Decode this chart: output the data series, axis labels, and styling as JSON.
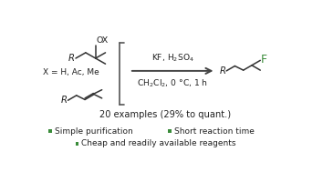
{
  "background_color": "#ffffff",
  "arrow_color": "#555555",
  "green_color": "#3a8c3a",
  "text_color": "#222222",
  "reaction_conditions_line1": "KF, H$_2$SO$_4$",
  "reaction_conditions_line2": "CH$_2$Cl$_2$, 0 °C, 1 h",
  "examples_text": "20 examples (29% to quant.)",
  "bullet1": "Simple purification",
  "bullet2": "Short reaction time",
  "bullet3": "Cheap and readily available reagents",
  "x_label": "X = H, Ac, Me",
  "fig_width": 3.54,
  "fig_height": 2.0,
  "dpi": 100
}
